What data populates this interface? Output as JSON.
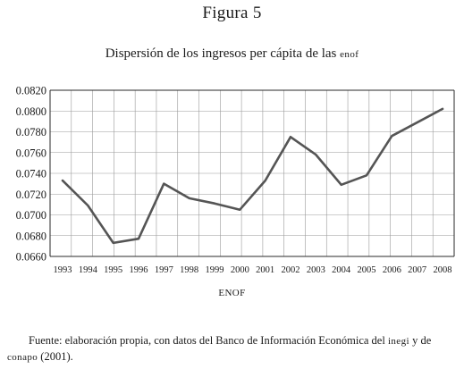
{
  "figure_label": "Figura 5",
  "source": {
    "prefix": "Fuente: elaboración propia, con datos del Banco de Información Económica del ",
    "inegi": "inegi",
    "middle": " y de ",
    "conapo": "conapo",
    "suffix": " (2001)."
  },
  "chart_data": {
    "type": "line",
    "title_main": "Dispersión de los ingresos per cápita de las ",
    "title_sc": "enof",
    "xlabel": "ENOF",
    "ylabel": "",
    "ylim": [
      0.066,
      0.082
    ],
    "yticks": [
      "0.0820",
      "0.0800",
      "0.0780",
      "0.0760",
      "0.0740",
      "0.0720",
      "0.0700",
      "0.0680",
      "0.0660"
    ],
    "categories": [
      "1993",
      "1994",
      "1995",
      "1996",
      "1997",
      "1998",
      "1999",
      "2000",
      "2001",
      "2002",
      "2003",
      "2004",
      "2005",
      "2006",
      "2007",
      "2008"
    ],
    "grid": true,
    "series": [
      {
        "x": [
          1993,
          1994,
          1995,
          1996,
          1997,
          1998,
          1999,
          2000,
          2001,
          2002,
          2003,
          2004,
          2005,
          2006,
          2008
        ],
        "values": [
          0.0733,
          0.0709,
          0.0673,
          0.0677,
          0.073,
          0.0716,
          0.0711,
          0.0705,
          0.0733,
          0.0775,
          0.0758,
          0.0729,
          0.0738,
          0.0776,
          0.0802
        ]
      }
    ]
  }
}
